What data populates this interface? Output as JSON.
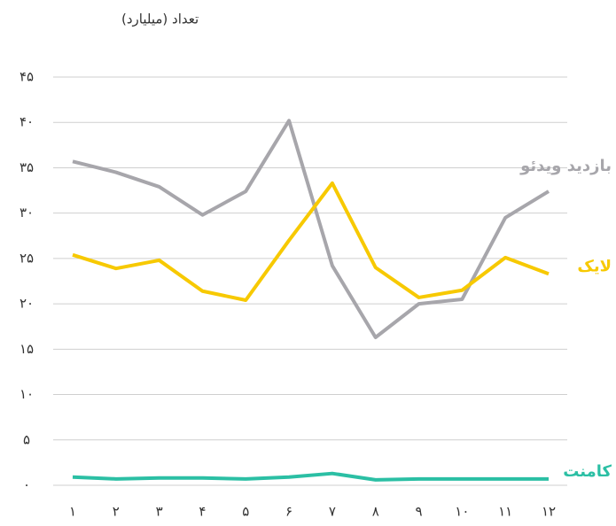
{
  "chart_data": {
    "type": "line",
    "y_axis_label": "تعداد (میلیارد)",
    "categories": [
      "۱",
      "۲",
      "۳",
      "۴",
      "۵",
      "۶",
      "۷",
      "۸",
      "۹",
      "۱۰",
      "۱۱",
      "۱۲"
    ],
    "series": [
      {
        "name": "بازدید ویدئو",
        "color": "#a7a6ab",
        "values": [
          35.7,
          34.5,
          32.9,
          29.8,
          32.4,
          40.2,
          24.2,
          16.3,
          20.0,
          20.5,
          29.5,
          32.4
        ]
      },
      {
        "name": "لایک",
        "color": "#f7c900",
        "values": [
          25.4,
          23.9,
          24.8,
          21.4,
          20.4,
          27.0,
          33.3,
          24.0,
          20.7,
          21.5,
          25.1,
          23.3
        ]
      },
      {
        "name": "کامنت",
        "color": "#2bbfa4",
        "values": [
          0.9,
          0.7,
          0.8,
          0.8,
          0.7,
          0.9,
          1.3,
          0.6,
          0.7,
          0.7,
          0.7,
          0.7
        ]
      }
    ],
    "ylim": [
      0,
      45
    ],
    "yticks": [
      {
        "value": 0,
        "label": "۰"
      },
      {
        "value": 5,
        "label": "۵"
      },
      {
        "value": 10,
        "label": "۱۰"
      },
      {
        "value": 15,
        "label": "۱۵"
      },
      {
        "value": 20,
        "label": "۲۰"
      },
      {
        "value": 25,
        "label": "۲۵"
      },
      {
        "value": 30,
        "label": "۳۰"
      },
      {
        "value": 35,
        "label": "۳۵"
      },
      {
        "value": 40,
        "label": "۴۰"
      },
      {
        "value": 45,
        "label": "۴۵"
      }
    ],
    "grid": true
  }
}
